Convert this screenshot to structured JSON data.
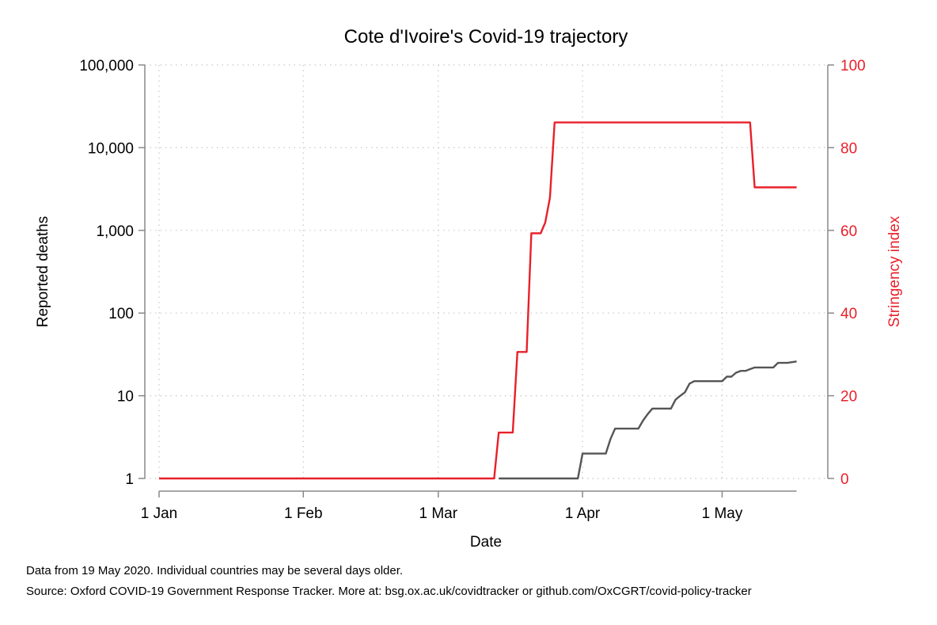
{
  "chart_data": {
    "type": "line",
    "title": "Cote d'Ivoire's Covid-19 trajectory",
    "xlabel": "Date",
    "ylabel_left": "Reported deaths",
    "ylabel_right": "Stringency index",
    "x_ticks": [
      "1 Jan",
      "1 Feb",
      "1 Mar",
      "1 Apr",
      "1 May"
    ],
    "x_tick_dates": [
      "2020-01-01",
      "2020-02-01",
      "2020-03-01",
      "2020-04-01",
      "2020-05-01"
    ],
    "x_range": [
      "2020-01-01",
      "2020-05-19"
    ],
    "y_left": {
      "scale": "log",
      "range": [
        1,
        100000
      ],
      "ticks": [
        "1",
        "10",
        "100",
        "1,000",
        "10,000",
        "100,000"
      ],
      "tick_values": [
        1,
        10,
        100,
        1000,
        10000,
        100000
      ]
    },
    "y_right": {
      "scale": "linear",
      "range": [
        0,
        100
      ],
      "ticks": [
        "0",
        "20",
        "40",
        "60",
        "80",
        "100"
      ],
      "tick_values": [
        0,
        20,
        40,
        60,
        80,
        100
      ]
    },
    "grid": true,
    "series": [
      {
        "axis": "right",
        "color": "#e8202a",
        "points": [
          [
            "2020-01-01",
            0
          ],
          [
            "2020-03-13",
            0
          ],
          [
            "2020-03-14",
            11.1
          ],
          [
            "2020-03-17",
            11.1
          ],
          [
            "2020-03-18",
            30.6
          ],
          [
            "2020-03-20",
            30.6
          ],
          [
            "2020-03-21",
            59.3
          ],
          [
            "2020-03-23",
            59.3
          ],
          [
            "2020-03-24",
            61.9
          ],
          [
            "2020-03-25",
            67.9
          ],
          [
            "2020-03-26",
            86.1
          ],
          [
            "2020-05-07",
            86.1
          ],
          [
            "2020-05-08",
            70.4
          ],
          [
            "2020-05-17",
            70.4
          ]
        ]
      },
      {
        "axis": "left",
        "color": "#555555",
        "points": [
          [
            "2020-03-14",
            1
          ],
          [
            "2020-03-31",
            1
          ],
          [
            "2020-04-01",
            2
          ],
          [
            "2020-04-06",
            2
          ],
          [
            "2020-04-07",
            3
          ],
          [
            "2020-04-08",
            4
          ],
          [
            "2020-04-13",
            4
          ],
          [
            "2020-04-14",
            5
          ],
          [
            "2020-04-15",
            6
          ],
          [
            "2020-04-16",
            7
          ],
          [
            "2020-04-20",
            7
          ],
          [
            "2020-04-21",
            9
          ],
          [
            "2020-04-22",
            10
          ],
          [
            "2020-04-23",
            11
          ],
          [
            "2020-04-24",
            14
          ],
          [
            "2020-04-25",
            15
          ],
          [
            "2020-05-01",
            15
          ],
          [
            "2020-05-02",
            17
          ],
          [
            "2020-05-03",
            17
          ],
          [
            "2020-05-04",
            19
          ],
          [
            "2020-05-05",
            20
          ],
          [
            "2020-05-06",
            20
          ],
          [
            "2020-05-07",
            21
          ],
          [
            "2020-05-08",
            22
          ],
          [
            "2020-05-12",
            22
          ],
          [
            "2020-05-13",
            25
          ],
          [
            "2020-05-15",
            25
          ],
          [
            "2020-05-17",
            26
          ]
        ]
      }
    ]
  },
  "notes": {
    "line1": "Data from 19 May 2020. Individual countries may be several days older.",
    "line2": "Source: Oxford COVID-19 Government Response Tracker. More at: bsg.ox.ac.uk/covidtracker or github.com/OxCGRT/covid-policy-tracker"
  },
  "colors": {
    "stringency": "#e8202a",
    "deaths": "#555555",
    "axis": "#888888",
    "grid": "#c8c8c8"
  }
}
